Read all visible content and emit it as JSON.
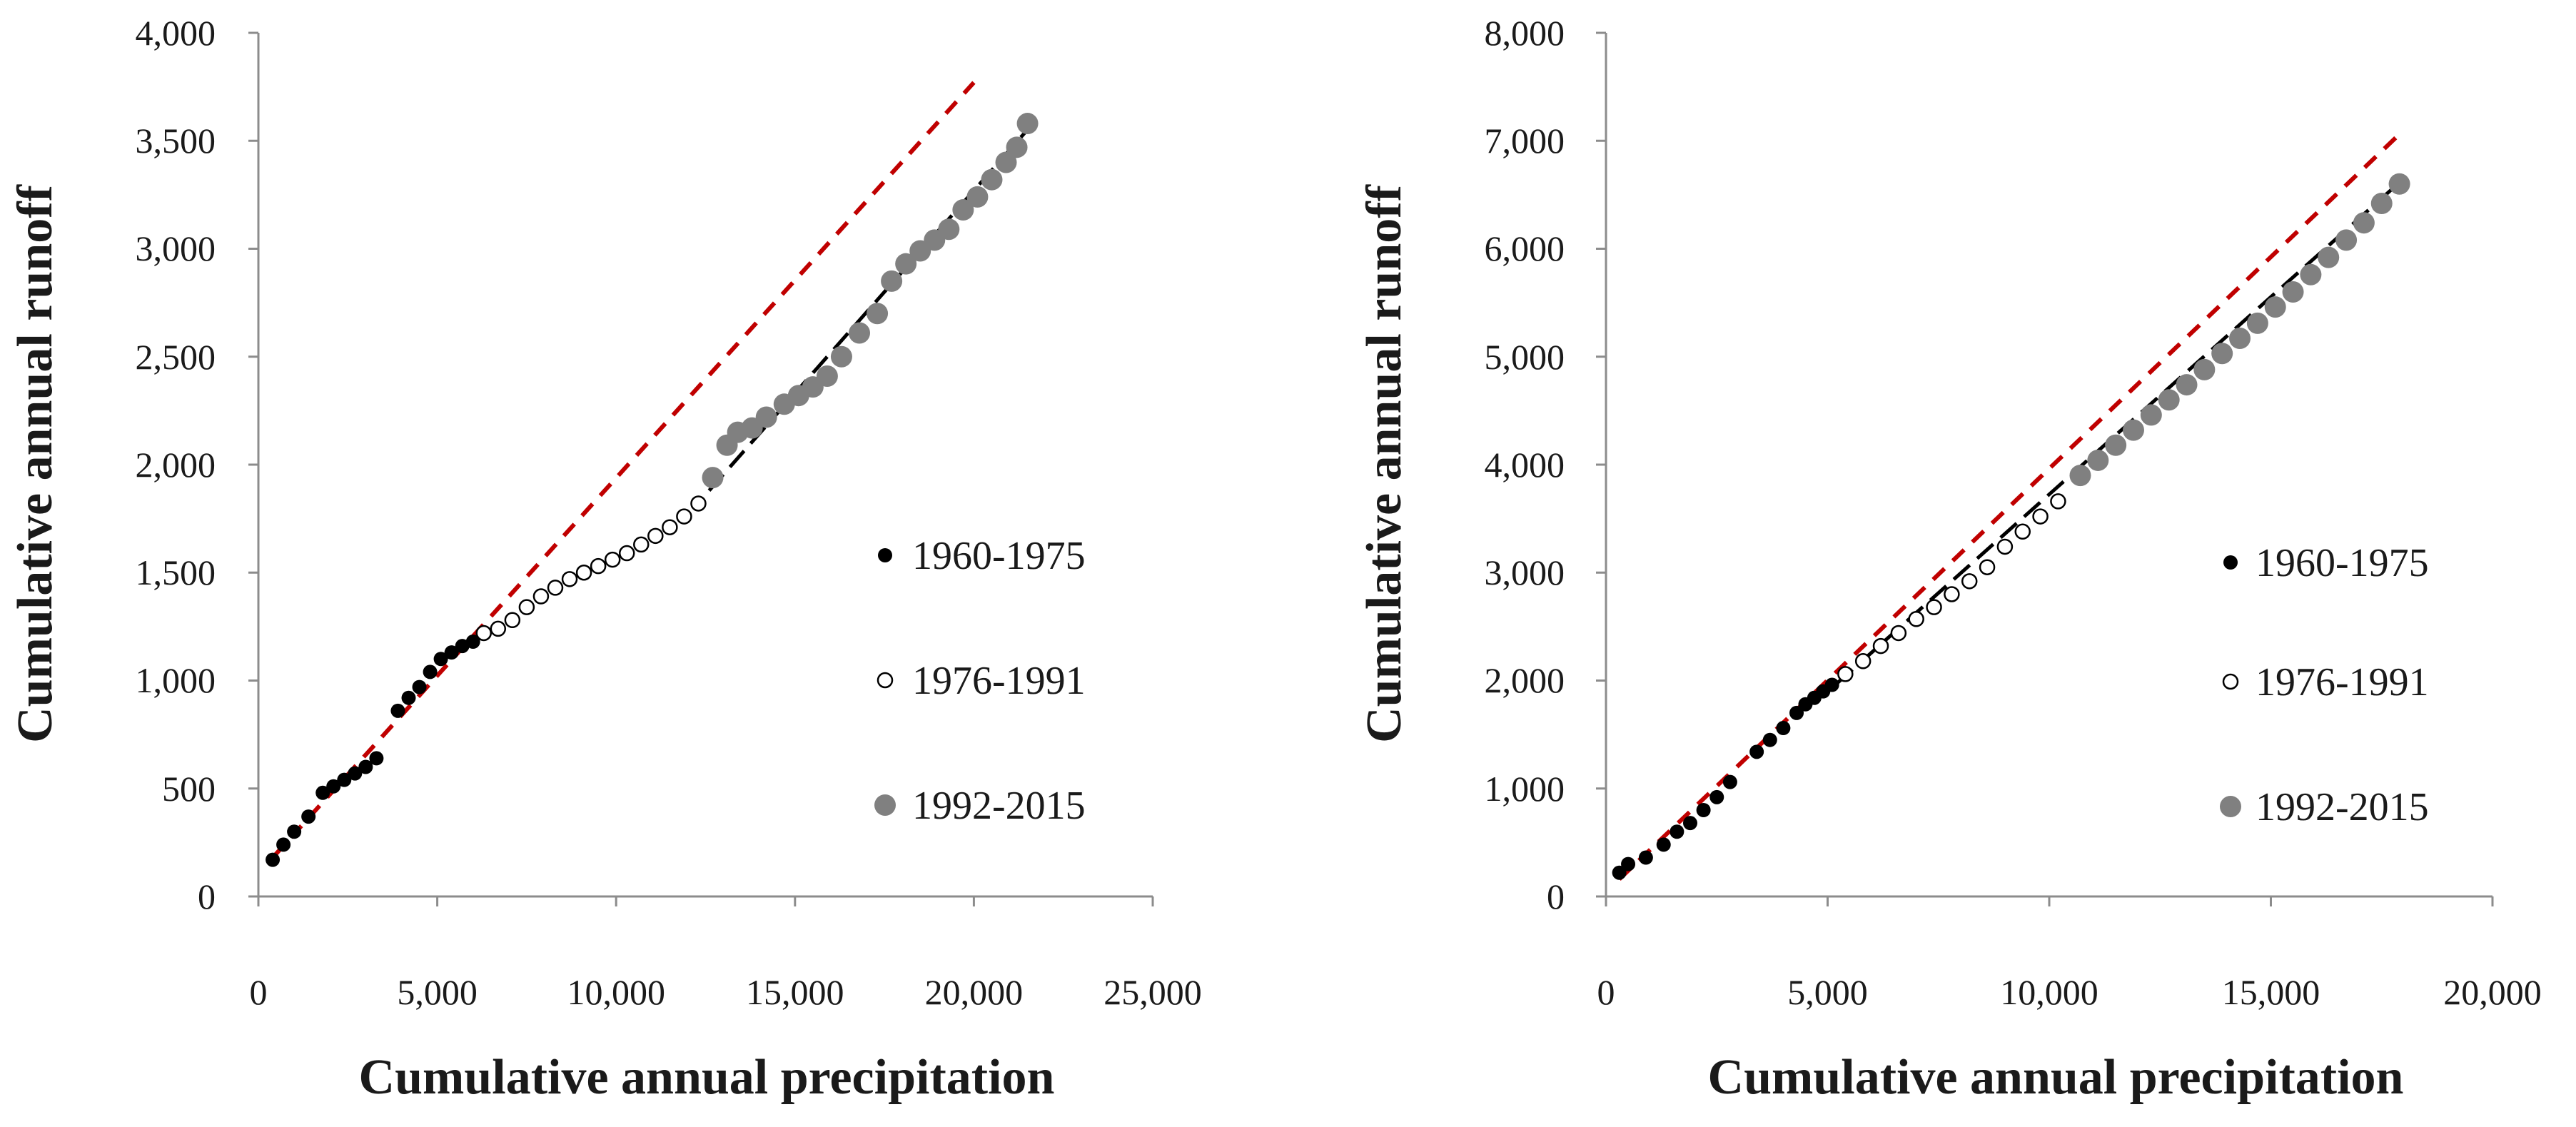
{
  "chart_data": [
    {
      "type": "scatter",
      "xlabel": "Cumulative annual precipitation",
      "ylabel": "Cumulative annual runoff",
      "xlim": [
        0,
        25000
      ],
      "ylim": [
        0,
        4000
      ],
      "xticks": [
        "0",
        "5,000",
        "10,000",
        "15,000",
        "20,000",
        "25,000"
      ],
      "yticks": [
        "0",
        "500",
        "1,000",
        "1,500",
        "2,000",
        "2,500",
        "3,000",
        "3,500",
        "4,000"
      ],
      "legend": {
        "position": "right",
        "entries": [
          "1960-1975",
          "1976-1991",
          "1992-2015"
        ]
      },
      "series": [
        {
          "name": "1960-1975",
          "x": [
            400,
            700,
            1000,
            1400,
            1800,
            2100,
            2400,
            2700,
            3000,
            3300,
            3900,
            4200,
            4500,
            4800,
            5100,
            5400,
            5700,
            6000
          ],
          "y": [
            170,
            240,
            300,
            370,
            480,
            510,
            540,
            570,
            600,
            640,
            860,
            920,
            970,
            1040,
            1100,
            1130,
            1160,
            1180
          ]
        },
        {
          "name": "1976-1991",
          "x": [
            6300,
            6700,
            7100,
            7500,
            7900,
            8300,
            8700,
            9100,
            9500,
            9900,
            10300,
            10700,
            11100,
            11500,
            11900,
            12300
          ],
          "y": [
            1220,
            1240,
            1280,
            1340,
            1390,
            1430,
            1470,
            1500,
            1530,
            1560,
            1590,
            1630,
            1670,
            1710,
            1760,
            1820
          ]
        },
        {
          "name": "1992-2015",
          "x": [
            12700,
            13100,
            13400,
            13800,
            14200,
            14700,
            15100,
            15500,
            15900,
            16300,
            16800,
            17300,
            17700,
            18100,
            18500,
            18900,
            19300,
            19700,
            20100,
            20500,
            20900,
            21200,
            21500
          ],
          "y": [
            1940,
            2090,
            2150,
            2170,
            2220,
            2280,
            2320,
            2360,
            2410,
            2500,
            2610,
            2700,
            2850,
            2930,
            2990,
            3040,
            3090,
            3180,
            3240,
            3320,
            3400,
            3470,
            3580
          ]
        }
      ],
      "trend_lines": [
        {
          "name": "baseline-trend",
          "style": "red-dashed",
          "x": [
            400,
            20000
          ],
          "y": [
            180,
            3770
          ]
        },
        {
          "name": "fitted-trend-1992-2015",
          "style": "black-dashed",
          "x": [
            12600,
            21600
          ],
          "y": [
            1880,
            3570
          ]
        }
      ]
    },
    {
      "type": "scatter",
      "xlabel": "Cumulative annual precipitation",
      "ylabel": "Cumulative annual runoff",
      "xlim": [
        0,
        20000
      ],
      "ylim": [
        0,
        8000
      ],
      "xticks": [
        "0",
        "5,000",
        "10,000",
        "15,000",
        "20,000"
      ],
      "yticks": [
        "0",
        "1,000",
        "2,000",
        "3,000",
        "4,000",
        "5,000",
        "6,000",
        "7,000",
        "8,000"
      ],
      "legend": {
        "position": "right",
        "entries": [
          "1960-1975",
          "1976-1991",
          "1992-2015"
        ]
      },
      "series": [
        {
          "name": "1960-1975",
          "x": [
            300,
            500,
            900,
            1300,
            1600,
            1900,
            2200,
            2500,
            2800,
            3400,
            3700,
            4000,
            4300,
            4500,
            4700,
            4900,
            5100
          ],
          "y": [
            220,
            300,
            360,
            480,
            600,
            680,
            800,
            920,
            1060,
            1340,
            1450,
            1560,
            1700,
            1780,
            1840,
            1900,
            1960
          ]
        },
        {
          "name": "1976-1991",
          "x": [
            5400,
            5800,
            6200,
            6600,
            7000,
            7400,
            7800,
            8200,
            8600,
            9000,
            9400,
            9800,
            10200
          ],
          "y": [
            2060,
            2180,
            2320,
            2440,
            2570,
            2680,
            2800,
            2920,
            3050,
            3240,
            3380,
            3520,
            3660
          ]
        },
        {
          "name": "1992-2015",
          "x": [
            10700,
            11100,
            11500,
            11900,
            12300,
            12700,
            13100,
            13500,
            13900,
            14300,
            14700,
            15100,
            15500,
            15900,
            16300,
            16700,
            17100,
            17500,
            17900
          ],
          "y": [
            3900,
            4040,
            4180,
            4320,
            4460,
            4600,
            4740,
            4880,
            5030,
            5170,
            5310,
            5460,
            5600,
            5760,
            5920,
            6080,
            6240,
            6420,
            6600
          ]
        }
      ],
      "trend_lines": [
        {
          "name": "baseline-trend",
          "style": "red-dashed",
          "x": [
            300,
            18000
          ],
          "y": [
            160,
            7100
          ]
        },
        {
          "name": "fitted-trend-1992-2015",
          "style": "black-dashed",
          "x": [
            5200,
            18000
          ],
          "y": [
            1970,
            6650
          ]
        }
      ]
    }
  ]
}
